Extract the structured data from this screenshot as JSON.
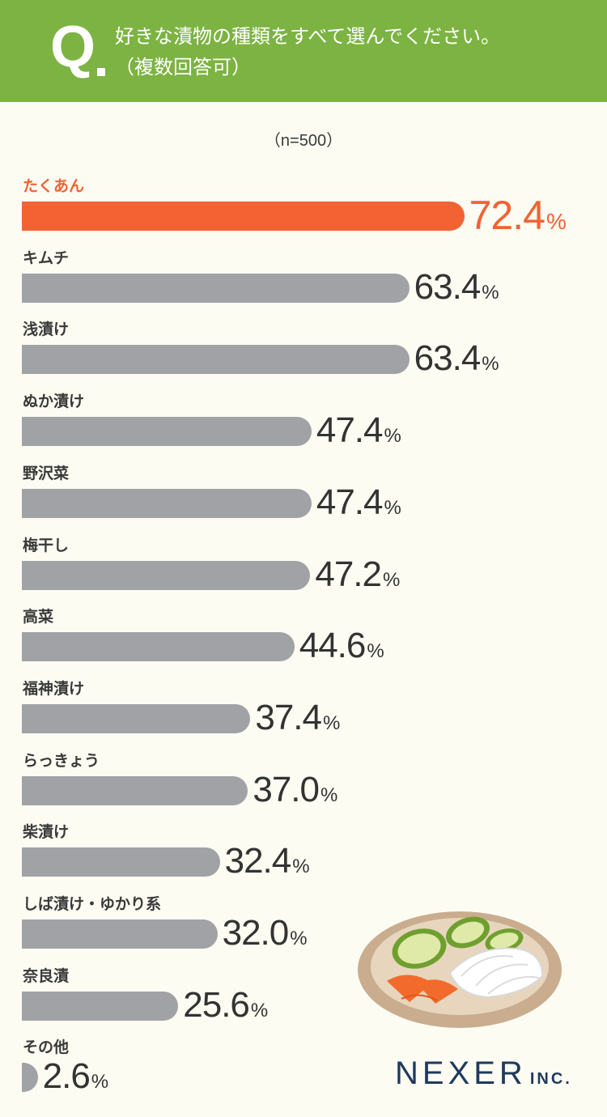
{
  "question": {
    "mark": "Q",
    "line1": "好きな漬物の種類をすべて選んでください。",
    "line2": "（複数回答可）"
  },
  "sample": "（n=500）",
  "logo": {
    "name": "NEXER",
    "suffix": "INC."
  },
  "colors": {
    "header": "#7cb342",
    "highlight": "#f26232",
    "bar": "#a1a2a6",
    "background": "#fcfcf3"
  },
  "plate_illustration": "cucumber, carrot and daikon pickles on a plate",
  "chart_data": {
    "type": "bar",
    "orientation": "horizontal",
    "unit": "%",
    "categories": [
      "たくあん",
      "キムチ",
      "浅漬け",
      "ぬか漬け",
      "野沢菜",
      "梅干し",
      "高菜",
      "福神漬け",
      "らっきょう",
      "柴漬け",
      "しば漬け・ゆかり系",
      "奈良漬",
      "その他"
    ],
    "values": [
      72.4,
      63.4,
      63.4,
      47.4,
      47.4,
      47.2,
      44.6,
      37.4,
      37.0,
      32.4,
      32.0,
      25.6,
      2.6
    ],
    "value_labels": [
      "72.4",
      "63.4",
      "63.4",
      "47.4",
      "47.4",
      "47.2",
      "44.6",
      "37.4",
      "37.0",
      "32.4",
      "32.0",
      "25.6",
      "2.6"
    ],
    "highlight_index": 0,
    "xlim": [
      0,
      100
    ],
    "grid": false
  }
}
